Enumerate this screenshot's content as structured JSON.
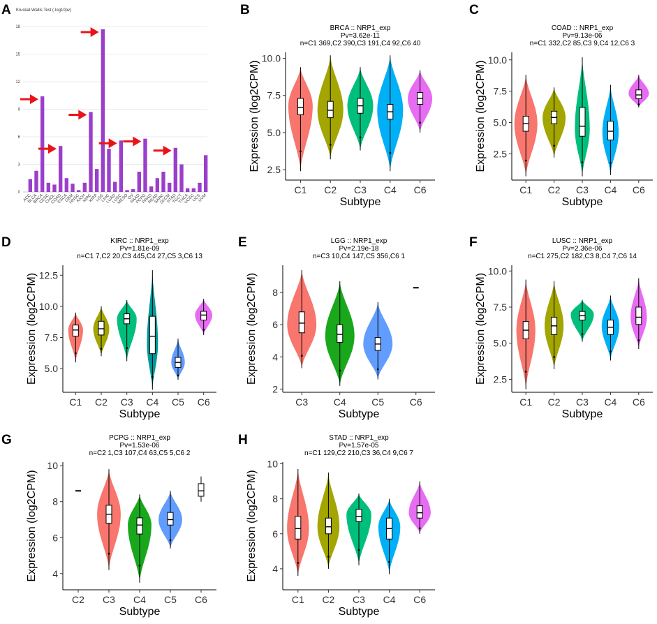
{
  "colors": {
    "bar": "#9a3fcb",
    "arrow": "#e8141a",
    "C1": "#f8766d",
    "C2": "#a3a500",
    "C3": "#00bf7d",
    "C4": "#00b0f6",
    "C6": "#e76bf3"
  },
  "chart_data": [
    {
      "panel": "A",
      "type": "bar",
      "title": "Kruskal-Wallis Test (-log10pv)",
      "ylim": [
        0,
        18
      ],
      "yticks": [
        0,
        3,
        6,
        9,
        12,
        15,
        18
      ],
      "categories": [
        "ACC",
        "BLCA",
        "BRCA",
        "CESC",
        "CHOL",
        "COAD",
        "ESCA",
        "GBM",
        "HNSC",
        "KICH",
        "KIRC",
        "KIRP",
        "LGG",
        "LIHC",
        "LUAD",
        "LUSC",
        "MESO",
        "OV",
        "PAAD",
        "PCPG",
        "PRAD",
        "READ",
        "SARC",
        "SKCM",
        "STAD",
        "TGCT",
        "THCA",
        "UCEC",
        "UCS",
        "UVM"
      ],
      "values": [
        1.4,
        2.3,
        10.4,
        1.0,
        0.8,
        5.0,
        1.5,
        0.9,
        0.2,
        1.0,
        8.7,
        2.5,
        17.7,
        4.7,
        1.1,
        5.6,
        0.2,
        0.3,
        2.2,
        5.8,
        0.6,
        1.5,
        2.2,
        1.0,
        4.8,
        3.0,
        0.4,
        0.4,
        1.0,
        4.0
      ],
      "highlighted": [
        "BRCA",
        "COAD",
        "KIRC",
        "LGG",
        "LUSC",
        "PCPG",
        "STAD"
      ],
      "grid": true
    },
    {
      "panel": "B",
      "type": "violin",
      "title": "BRCA :: NRP1_exp",
      "pvalue": "Pv=3.62e-11",
      "counts": "n=C1 369,C2 390,C3 191,C4 92,C6 40",
      "xlabel": "Subtype",
      "ylabel": "Expression (log2CPM)",
      "ylim": [
        1.8,
        10.4
      ],
      "yticks": [
        2.5,
        5.0,
        7.5,
        10.0
      ],
      "groups": [
        {
          "name": "C1",
          "color": "C1",
          "min": 2.4,
          "max": 9.4,
          "q1": 6.2,
          "median": 6.7,
          "q3": 7.3,
          "peak": 6.8,
          "width": 0.85
        },
        {
          "name": "C2",
          "color": "C2",
          "min": 3.2,
          "max": 10.2,
          "q1": 6.0,
          "median": 6.5,
          "q3": 7.1,
          "peak": 6.5,
          "width": 0.9
        },
        {
          "name": "C3",
          "color": "C3",
          "min": 3.8,
          "max": 9.4,
          "q1": 6.3,
          "median": 6.8,
          "q3": 7.3,
          "peak": 6.8,
          "width": 0.9
        },
        {
          "name": "C4",
          "color": "C4",
          "min": 2.4,
          "max": 10.2,
          "q1": 5.9,
          "median": 6.4,
          "q3": 6.9,
          "peak": 6.5,
          "width": 0.9
        },
        {
          "name": "C6",
          "color": "C6",
          "min": 5.0,
          "max": 9.2,
          "q1": 6.9,
          "median": 7.3,
          "q3": 7.7,
          "peak": 7.3,
          "width": 0.85
        }
      ]
    },
    {
      "panel": "C",
      "type": "violin",
      "title": "COAD :: NRP1_exp",
      "pvalue": "Pv=9.13e-06",
      "counts": "n=C1 332,C2 85,C3 9,C4 12,C6 3",
      "xlabel": "Subtype",
      "ylabel": "Expression (log2CPM)",
      "ylim": [
        0.4,
        10.6
      ],
      "yticks": [
        2.5,
        5.0,
        7.5,
        10.0
      ],
      "groups": [
        {
          "name": "C1",
          "color": "C1",
          "min": 0.7,
          "max": 8.8,
          "q1": 4.3,
          "median": 4.9,
          "q3": 5.5,
          "peak": 4.9,
          "width": 0.85
        },
        {
          "name": "C2",
          "color": "C2",
          "min": 2.2,
          "max": 7.8,
          "q1": 4.9,
          "median": 5.4,
          "q3": 5.9,
          "peak": 5.4,
          "width": 0.85
        },
        {
          "name": "C3",
          "color": "C3",
          "min": 0.7,
          "max": 10.2,
          "q1": 3.9,
          "median": 4.7,
          "q3": 6.2,
          "peak": 4.5,
          "width": 0.55
        },
        {
          "name": "C4",
          "color": "C4",
          "min": 0.8,
          "max": 8.0,
          "q1": 3.6,
          "median": 4.3,
          "q3": 5.1,
          "peak": 4.2,
          "width": 0.6
        },
        {
          "name": "C6",
          "color": "C6",
          "min": 6.2,
          "max": 8.8,
          "q1": 6.9,
          "median": 7.2,
          "q3": 7.6,
          "peak": 7.3,
          "width": 0.75
        }
      ]
    },
    {
      "panel": "D",
      "type": "violin",
      "title": "KIRC :: NRP1_exp",
      "pvalue": "Pv=1.81e-09",
      "counts": "n=C1 7,C2 20,C3 445,C4 27,C5 3,C6 13",
      "xlabel": "Subtype",
      "ylabel": "Expression (log2CPM)",
      "ylim": [
        3.1,
        13.3
      ],
      "yticks": [
        5.0,
        7.5,
        10.0,
        12.5
      ],
      "groups": [
        {
          "name": "C1",
          "color": "C1",
          "min": 5.5,
          "max": 9.5,
          "q1": 7.6,
          "median": 8.1,
          "q3": 8.5,
          "peak": 8.1,
          "width": 0.6
        },
        {
          "name": "C2",
          "color": "C2",
          "min": 6.0,
          "max": 10.0,
          "q1": 7.7,
          "median": 8.2,
          "q3": 8.8,
          "peak": 8.2,
          "width": 0.65
        },
        {
          "name": "C3",
          "color": "C3",
          "min": 5.6,
          "max": 10.5,
          "q1": 8.6,
          "median": 9.0,
          "q3": 9.4,
          "peak": 9.0,
          "width": 0.8
        },
        {
          "name": "C4",
          "color": "#009999",
          "min": 3.3,
          "max": 12.9,
          "q1": 6.2,
          "median": 7.6,
          "q3": 9.2,
          "peak": 7.0,
          "width": 0.45
        },
        {
          "name": "C5",
          "color": "#619cff",
          "min": 4.1,
          "max": 7.4,
          "q1": 5.1,
          "median": 5.5,
          "q3": 5.9,
          "peak": 5.5,
          "width": 0.55
        },
        {
          "name": "C6",
          "color": "C6",
          "min": 7.7,
          "max": 10.6,
          "q1": 8.9,
          "median": 9.3,
          "q3": 9.6,
          "peak": 9.3,
          "width": 0.7
        }
      ]
    },
    {
      "panel": "E",
      "type": "violin",
      "title": "LGG :: NRP1_exp",
      "pvalue": "Pv=2.19e-18",
      "counts": "n=C3 10,C4 147,C5 356,C6 1",
      "xlabel": "Subtype",
      "ylabel": "Expression (log2CPM)",
      "ylim": [
        1.8,
        9.7
      ],
      "yticks": [
        2,
        4,
        6,
        8
      ],
      "groups": [
        {
          "name": "C3",
          "color": "C1",
          "min": 3.3,
          "max": 9.4,
          "q1": 5.5,
          "median": 6.1,
          "q3": 6.8,
          "peak": 6.0,
          "width": 0.8
        },
        {
          "name": "C4",
          "color": "#19a81c",
          "min": 2.2,
          "max": 8.7,
          "q1": 4.9,
          "median": 5.4,
          "q3": 6.0,
          "peak": 5.3,
          "width": 0.8
        },
        {
          "name": "C5",
          "color": "#619cff",
          "min": 2.6,
          "max": 7.4,
          "q1": 4.4,
          "median": 4.8,
          "q3": 5.2,
          "peak": 4.8,
          "width": 0.8
        },
        {
          "name": "C6",
          "color": "#333333",
          "single": 8.3
        }
      ]
    },
    {
      "panel": "F",
      "type": "violin",
      "title": "LUSC :: NRP1_exp",
      "pvalue": "Pv=2.36e-06",
      "counts": "n=C1 275,C2 182,C3 8,C4 7,C6 14",
      "xlabel": "Subtype",
      "ylabel": "Expression (log2CPM)",
      "ylim": [
        1.6,
        10.4
      ],
      "yticks": [
        2.5,
        5.0,
        7.5,
        10.0
      ],
      "groups": [
        {
          "name": "C1",
          "color": "C1",
          "min": 1.8,
          "max": 9.4,
          "q1": 5.3,
          "median": 5.9,
          "q3": 6.5,
          "peak": 5.9,
          "width": 0.7
        },
        {
          "name": "C2",
          "color": "C2",
          "min": 3.2,
          "max": 9.3,
          "q1": 5.6,
          "median": 6.2,
          "q3": 6.8,
          "peak": 6.2,
          "width": 0.7
        },
        {
          "name": "C3",
          "color": "C3",
          "min": 5.1,
          "max": 8.0,
          "q1": 6.6,
          "median": 6.9,
          "q3": 7.2,
          "peak": 7.0,
          "width": 0.85
        },
        {
          "name": "C4",
          "color": "C4",
          "min": 3.8,
          "max": 8.3,
          "q1": 5.6,
          "median": 6.1,
          "q3": 6.6,
          "peak": 6.2,
          "width": 0.65
        },
        {
          "name": "C6",
          "color": "C6",
          "min": 4.6,
          "max": 9.5,
          "q1": 6.3,
          "median": 6.8,
          "q3": 7.5,
          "peak": 6.8,
          "width": 0.6
        }
      ]
    },
    {
      "panel": "G",
      "type": "violin",
      "title": "PCPG :: NRP1_exp",
      "pvalue": "Pv=1.53e-06",
      "counts": "n=C2 1,C3 107,C4 63,C5 5,C6 2",
      "xlabel": "Subtype",
      "ylabel": "Expression (log2CPM)",
      "ylim": [
        3.1,
        10.2
      ],
      "yticks": [
        4,
        6,
        8,
        10
      ],
      "groups": [
        {
          "name": "C2",
          "color": "#333333",
          "single": 8.6
        },
        {
          "name": "C3",
          "color": "C1",
          "min": 4.2,
          "max": 9.8,
          "q1": 6.8,
          "median": 7.3,
          "q3": 7.8,
          "peak": 7.3,
          "width": 0.8
        },
        {
          "name": "C4",
          "color": "#19a81c",
          "min": 3.5,
          "max": 8.4,
          "q1": 6.2,
          "median": 6.7,
          "q3": 7.1,
          "peak": 6.7,
          "width": 0.8
        },
        {
          "name": "C5",
          "color": "#619cff",
          "min": 5.4,
          "max": 8.6,
          "q1": 6.7,
          "median": 7.0,
          "q3": 7.4,
          "peak": 7.0,
          "width": 0.8
        },
        {
          "name": "C6",
          "color": "#333333",
          "boxonly": true,
          "min": 8.0,
          "max": 9.4,
          "q1": 8.3,
          "median": 8.6,
          "q3": 9.0
        }
      ]
    },
    {
      "panel": "H",
      "type": "violin",
      "title": "STAD :: NRP1_exp",
      "pvalue": "Pv=1.57e-05",
      "counts": "n=C1 129,C2 210,C3 36,C4 9,C6 7",
      "xlabel": "Subtype",
      "ylabel": "Expression (log2CPM)",
      "ylim": [
        2.8,
        10.1
      ],
      "yticks": [
        4,
        6,
        8,
        10
      ],
      "groups": [
        {
          "name": "C1",
          "color": "C1",
          "min": 3.6,
          "max": 9.7,
          "q1": 5.7,
          "median": 6.3,
          "q3": 7.0,
          "peak": 6.3,
          "width": 0.75
        },
        {
          "name": "C2",
          "color": "C2",
          "min": 4.0,
          "max": 9.5,
          "q1": 6.0,
          "median": 6.4,
          "q3": 6.9,
          "peak": 6.4,
          "width": 0.75
        },
        {
          "name": "C3",
          "color": "C3",
          "min": 4.2,
          "max": 8.3,
          "q1": 6.7,
          "median": 7.0,
          "q3": 7.4,
          "peak": 7.1,
          "width": 0.85
        },
        {
          "name": "C4",
          "color": "C4",
          "min": 3.7,
          "max": 8.0,
          "q1": 5.7,
          "median": 6.3,
          "q3": 6.9,
          "peak": 6.4,
          "width": 0.75
        },
        {
          "name": "C6",
          "color": "C6",
          "min": 6.0,
          "max": 9.0,
          "q1": 6.9,
          "median": 7.2,
          "q3": 7.6,
          "peak": 7.2,
          "width": 0.75
        }
      ]
    }
  ]
}
